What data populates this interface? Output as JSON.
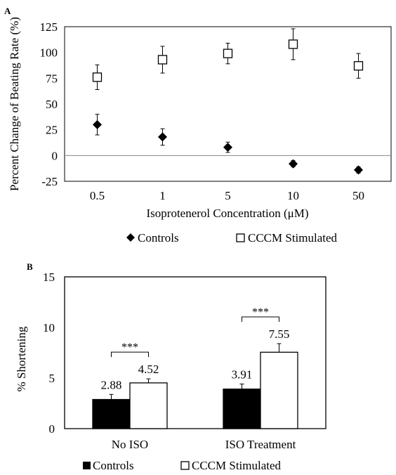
{
  "chart_data": [
    {
      "panel_label": "A",
      "type": "scatter",
      "categories": [
        "0.5",
        "1",
        "5",
        "10",
        "50"
      ],
      "ylabel": "Percent Change of Beating Rate (%)",
      "xlabel": "Isoprotenerol Concentration (μM)",
      "ylim": [
        -25,
        125
      ],
      "yticks": [
        "-25",
        "0",
        "25",
        "50",
        "75",
        "100",
        "125"
      ],
      "reference_line": 0,
      "grid": false,
      "legend_position": "bottom",
      "series": [
        {
          "name": "Controls",
          "marker": "filled-diamond",
          "color": "#000000",
          "values": [
            30,
            18,
            8,
            -8,
            -14
          ],
          "errors": [
            10,
            8,
            5,
            3,
            3
          ]
        },
        {
          "name": "CCCM Stimulated",
          "marker": "open-square",
          "color": "#000000",
          "values": [
            76,
            93,
            99,
            108,
            87
          ],
          "errors": [
            12,
            13,
            10,
            15,
            12
          ]
        }
      ]
    },
    {
      "panel_label": "B",
      "type": "bar",
      "categories": [
        "No ISO",
        "ISO Treatment"
      ],
      "ylabel": "% Shortening",
      "ylim": [
        0,
        15
      ],
      "yticks": [
        "0",
        "5",
        "10",
        "15"
      ],
      "grid": false,
      "legend_position": "bottom",
      "significance": "***",
      "series": [
        {
          "name": "Controls",
          "fill": "#000000",
          "values": [
            2.88,
            3.91
          ],
          "labels": [
            "2.88",
            "3.91"
          ],
          "errors": [
            0.5,
            0.5
          ]
        },
        {
          "name": "CCCM Stimulated",
          "fill": "#ffffff",
          "values": [
            4.52,
            7.55
          ],
          "labels": [
            "4.52",
            "7.55"
          ],
          "errors": [
            0.4,
            0.85
          ]
        }
      ]
    }
  ]
}
